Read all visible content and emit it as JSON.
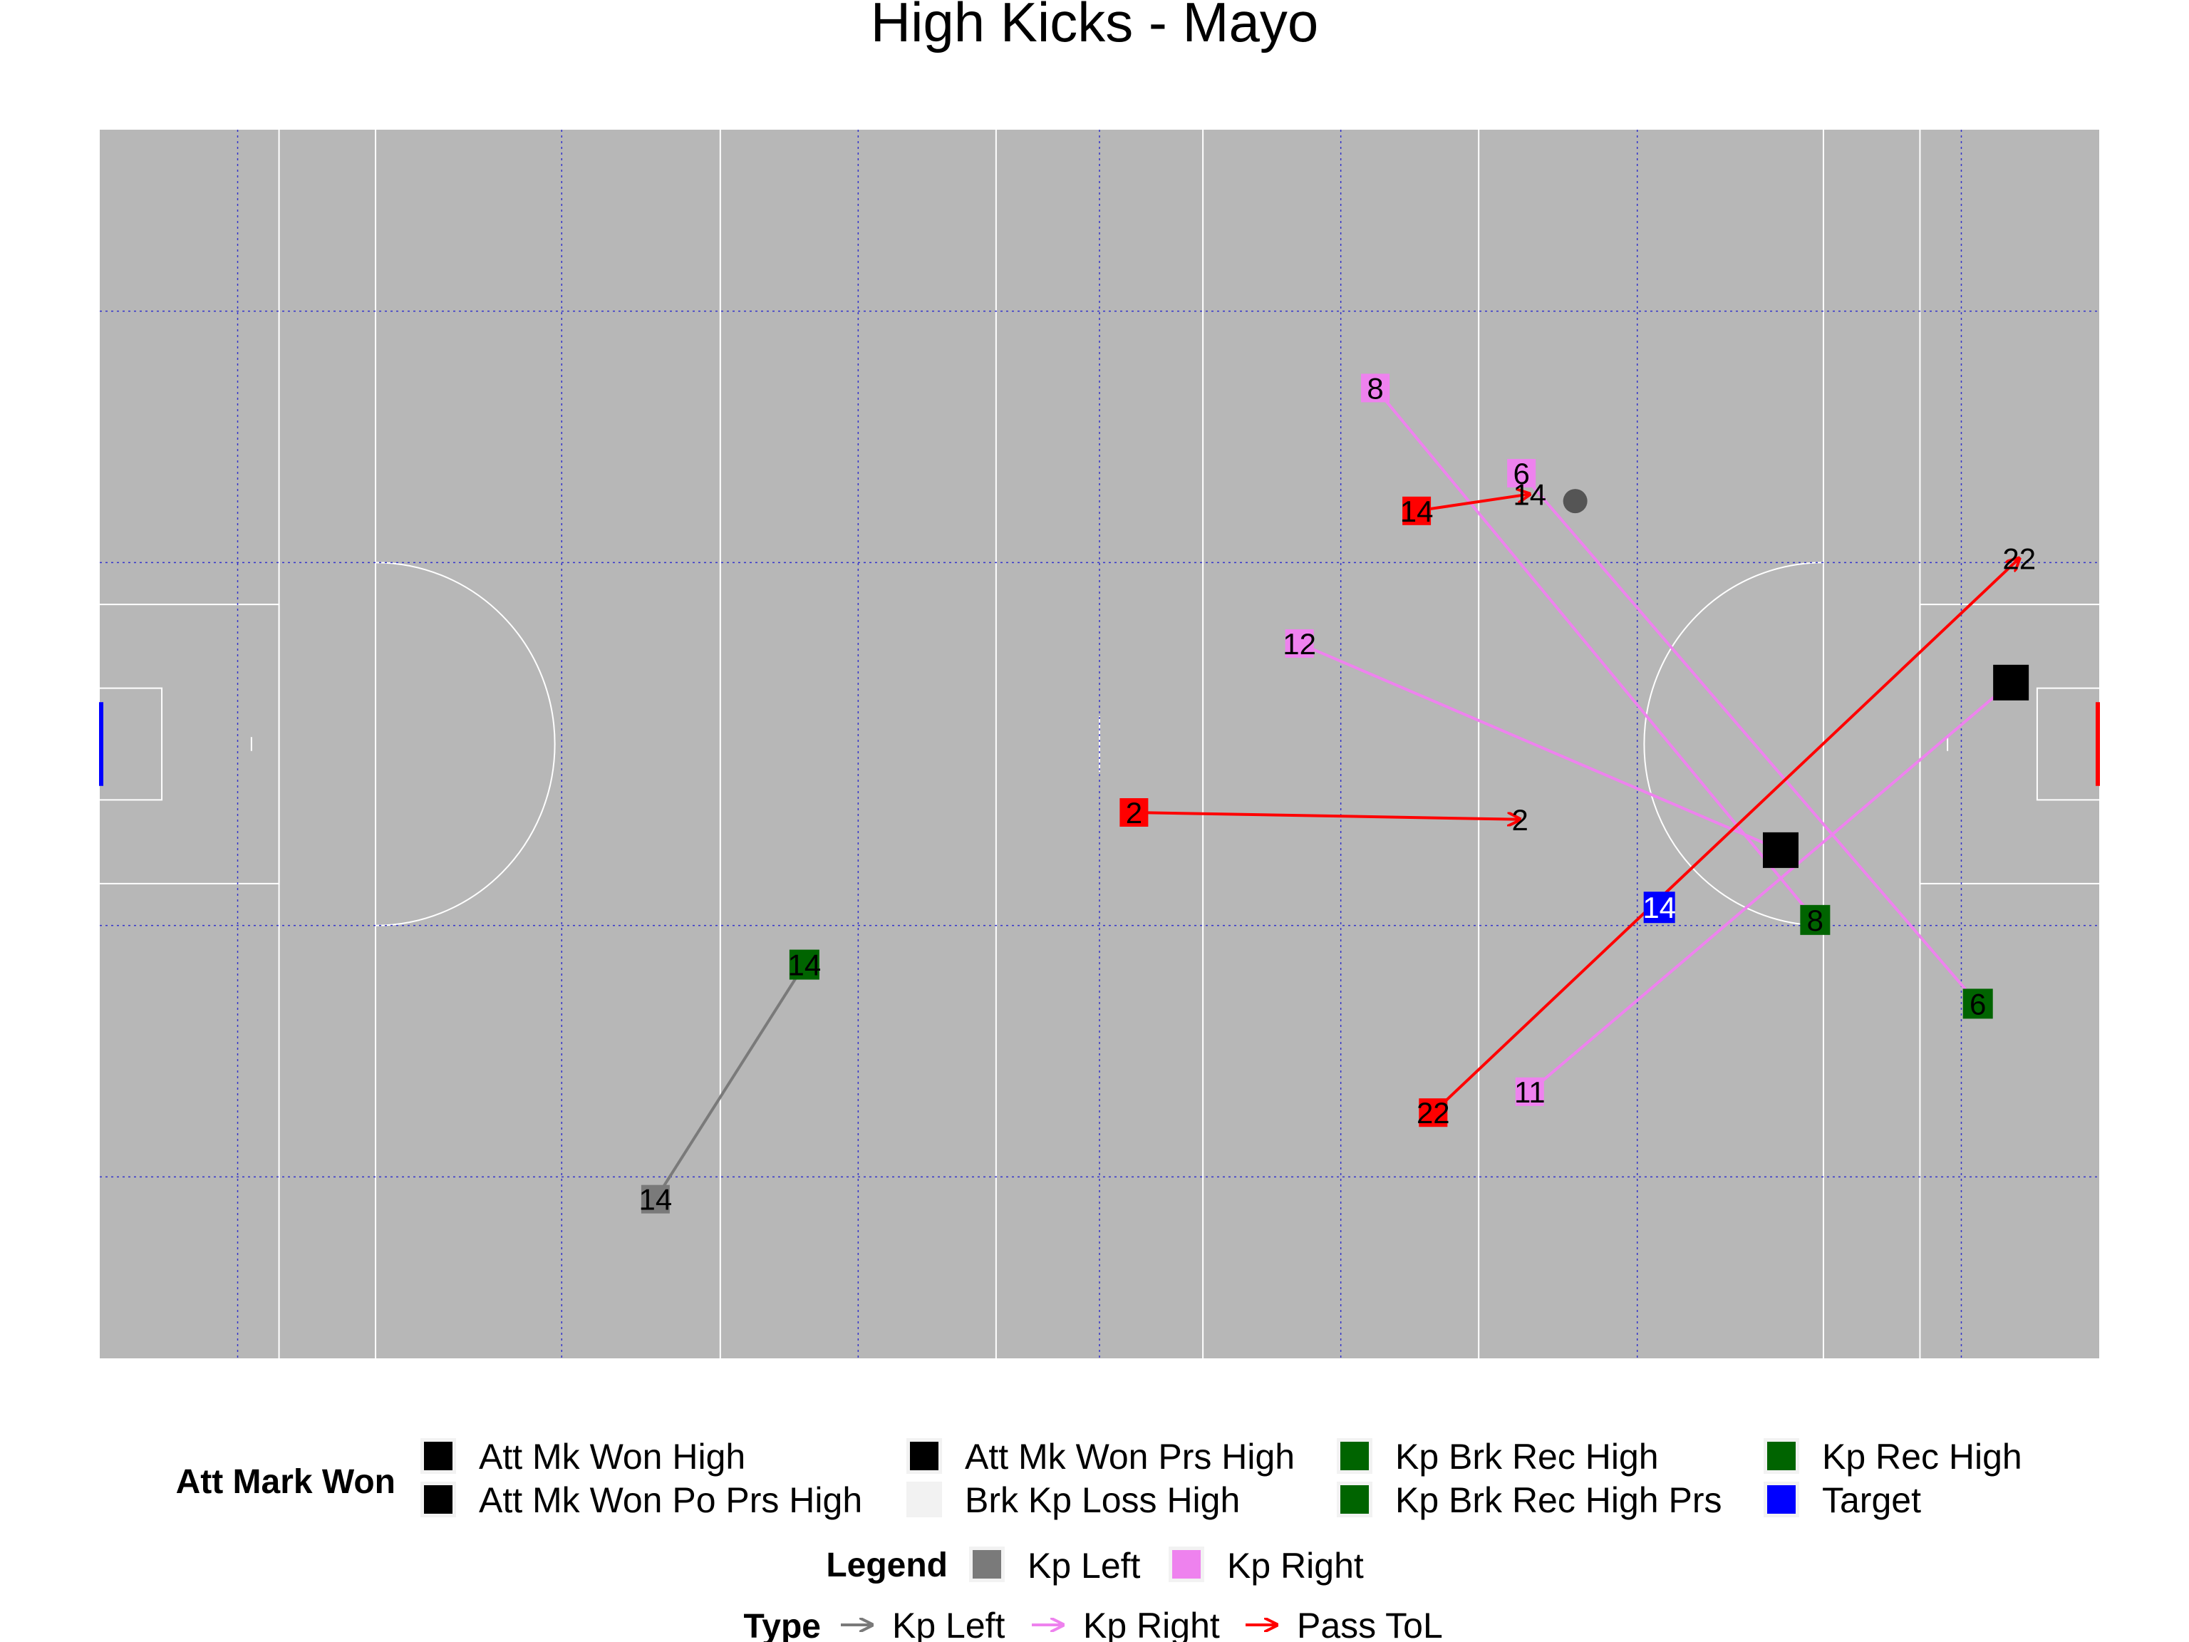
{
  "chart_data": {
    "type": "scatter",
    "title": "High Kicks - Mayo",
    "xlim": [
      0,
      145
    ],
    "ylim": [
      0,
      88
    ],
    "grid": true,
    "colors": {
      "pitch": "#b7b7b7",
      "pitch_lines": "#ffffff",
      "grid": "#3333cc",
      "kp_left": "#7a7a7a",
      "kp_right": "#ee82ee",
      "pass_tol": "#ff0000",
      "att_mk_won": "#000000",
      "kp_rec": "#006400",
      "target": "#0000ff",
      "brk_kp_loss": "#f2f2f2",
      "marker_dot": "#555555"
    },
    "kicks": [
      {
        "type": "Kp Left",
        "from": {
          "x": 40.3,
          "y": 11.4,
          "label": "14"
        },
        "to": {
          "x": 51.1,
          "y": 28.2,
          "label": "14",
          "outcome": "Kp Rec High"
        }
      },
      {
        "type": "Kp Right",
        "from": {
          "x": 92.5,
          "y": 69.5,
          "label": "8"
        },
        "to": {
          "x": 124.4,
          "y": 31.4,
          "label": "8",
          "outcome": "Kp Rec High"
        }
      },
      {
        "type": "Kp Right",
        "from": {
          "x": 103.1,
          "y": 63.4,
          "label": "6"
        },
        "to": {
          "x": 136.2,
          "y": 25.4,
          "label": "6",
          "outcome": "Kp Rec High"
        }
      },
      {
        "type": "Kp Right",
        "from": {
          "x": 87.0,
          "y": 51.2,
          "label": "12"
        },
        "to": {
          "x": 121.9,
          "y": 36.4,
          "label": "",
          "outcome": "Att Mk Won High"
        }
      },
      {
        "type": "Kp Right",
        "from": {
          "x": 103.7,
          "y": 19.1,
          "label": "11"
        },
        "to": {
          "x": 138.6,
          "y": 48.4,
          "label": "",
          "outcome": "Att Mk Won High"
        }
      },
      {
        "type": "Pass ToL",
        "from": {
          "x": 75.0,
          "y": 39.1,
          "label": "2"
        },
        "to": {
          "x": 103.0,
          "y": 38.6,
          "label": "2",
          "outcome": ""
        }
      },
      {
        "type": "Pass ToL",
        "from": {
          "x": 96.7,
          "y": 17.6,
          "label": "22"
        },
        "to": {
          "x": 139.2,
          "y": 57.3,
          "label": "22",
          "outcome": ""
        }
      },
      {
        "type": "Pass ToL",
        "from": {
          "x": 95.5,
          "y": 60.7,
          "label": "14"
        },
        "to": {
          "x": 103.7,
          "y": 61.9,
          "label": "14",
          "outcome": ""
        }
      }
    ],
    "extra_points": [
      {
        "x": 113.1,
        "y": 32.3,
        "label": "14",
        "outcome": "Target"
      },
      {
        "x": 107.0,
        "y": 61.4,
        "label": "",
        "outcome": "dot"
      }
    ],
    "legends": {
      "att_mark_won": {
        "title": "Att Mark Won",
        "items": [
          {
            "label": "Att Mk Won High",
            "color": "#000000"
          },
          {
            "label": "Att Mk Won Po Prs High",
            "color": "#000000"
          },
          {
            "label": "Att Mk Won Prs High",
            "color": "#000000"
          },
          {
            "label": "Brk Kp Loss High",
            "color": "#f2f2f2"
          },
          {
            "label": "Kp Brk Rec High",
            "color": "#006400"
          },
          {
            "label": "Kp Brk Rec High Prs",
            "color": "#006400"
          },
          {
            "label": "Kp Rec High",
            "color": "#006400"
          },
          {
            "label": "Target",
            "color": "#0000ff"
          }
        ]
      },
      "legend": {
        "title": "Legend",
        "items": [
          {
            "label": "Kp Left",
            "color": "#7a7a7a"
          },
          {
            "label": "Kp Right",
            "color": "#ee82ee"
          }
        ]
      },
      "type": {
        "title": "Type",
        "items": [
          {
            "label": "Kp Left",
            "color": "#7a7a7a"
          },
          {
            "label": "Kp Right",
            "color": "#ee82ee"
          },
          {
            "label": "Pass ToL",
            "color": "#ff0000"
          }
        ]
      }
    }
  }
}
